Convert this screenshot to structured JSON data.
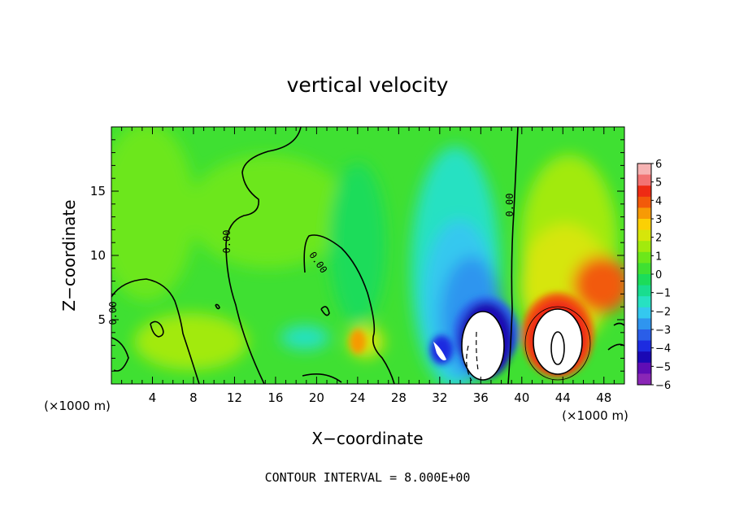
{
  "chart_data": {
    "type": "heatmap",
    "title": "vertical velocity",
    "xlabel": "X−coordinate",
    "ylabel": "Z−coordinate",
    "x_unit_left": "(×1000 m)",
    "x_unit_right": "(×1000 m)",
    "xlim": [
      0,
      50
    ],
    "ylim": [
      0,
      20
    ],
    "x_ticks": [
      4,
      8,
      12,
      16,
      20,
      24,
      28,
      32,
      36,
      40,
      44,
      48
    ],
    "y_ticks": [
      5,
      10,
      15
    ],
    "colorbar": {
      "range": [
        -6,
        6
      ],
      "labels": [
        "6",
        "5",
        "4",
        "3",
        "2",
        "1",
        "0",
        "−1",
        "−2",
        "−3",
        "−4",
        "−5",
        "−6"
      ],
      "colors": [
        "#f6b3b3",
        "#f27373",
        "#ee2b14",
        "#f25a0a",
        "#f79a05",
        "#fbd004",
        "#d6e60a",
        "#a2ea0d",
        "#6ce71a",
        "#3fe032",
        "#1cdc5a",
        "#19dd8f",
        "#27e1c2",
        "#34c8ef",
        "#2f95ef",
        "#2a5ee8",
        "#1d2ce0",
        "#1a08b4",
        "#5f0db5",
        "#8a26b6"
      ]
    },
    "contour_labels": [
      "0.00",
      "0.00",
      "0.00",
      "0.00",
      "0.00"
    ],
    "footer": "CONTOUR INTERVAL = 8.000E+00",
    "features": [
      {
        "x": 35.5,
        "z": 3.0,
        "w": -6,
        "note": "downdraft core (dashed contour)"
      },
      {
        "x": 43.0,
        "z": 3.6,
        "w": 6,
        "note": "updraft core"
      },
      {
        "x": 32.0,
        "z": 6.5,
        "w": -3
      },
      {
        "x": 47.5,
        "z": 7.5,
        "w": 4
      },
      {
        "x": 24.0,
        "z": 3.5,
        "w": 3
      },
      {
        "x": 18.0,
        "z": 4.0,
        "w": -1.5
      }
    ]
  }
}
